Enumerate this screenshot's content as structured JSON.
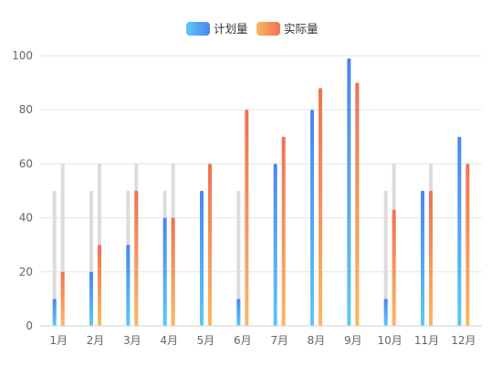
{
  "chart_data": {
    "type": "bar",
    "categories": [
      "1月",
      "2月",
      "3月",
      "4月",
      "5月",
      "6月",
      "7月",
      "8月",
      "9月",
      "10月",
      "11月",
      "12月"
    ],
    "series": [
      {
        "name": "计划量",
        "values": [
          10,
          20,
          30,
          40,
          50,
          10,
          60,
          80,
          99,
          10,
          50,
          70
        ]
      },
      {
        "name": "实际量",
        "values": [
          20,
          30,
          50,
          40,
          60,
          80,
          70,
          88,
          90,
          43,
          50,
          60
        ]
      }
    ],
    "background_values": {
      "计划量": [
        50,
        50,
        50,
        50,
        0,
        50,
        0,
        0,
        0,
        50,
        0,
        0
      ],
      "实际量": [
        60,
        60,
        60,
        60,
        0,
        0,
        0,
        0,
        0,
        60,
        60,
        0
      ]
    },
    "ylim": [
      0,
      100
    ],
    "yticks": [
      0,
      20,
      40,
      60,
      80,
      100
    ],
    "grid": true,
    "legend_position": "top-center",
    "colors": {
      "plan_top": "#4a86ee",
      "plan_bottom": "#5cc8f7",
      "actual_top": "#f07152",
      "actual_bottom": "#fbb863",
      "background_bar": "#dcdcdc",
      "grid": "#e6e6e6",
      "axis": "#cfcfcf",
      "tick_text": "#666666",
      "legend_text": "#333333"
    }
  }
}
